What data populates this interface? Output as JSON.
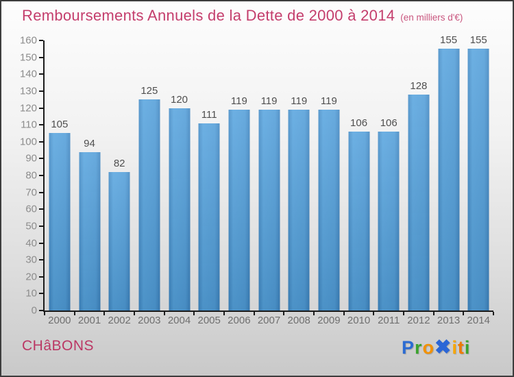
{
  "chart_data": {
    "type": "bar",
    "title": "Remboursements Annuels de la Dette de 2000 à 2014",
    "subtitle": "(en milliers d'€)",
    "categories": [
      "2000",
      "2001",
      "2002",
      "2003",
      "2004",
      "2005",
      "2006",
      "2007",
      "2008",
      "2009",
      "2010",
      "2011",
      "2012",
      "2013",
      "2014"
    ],
    "values": [
      105,
      94,
      82,
      125,
      120,
      111,
      119,
      119,
      119,
      119,
      106,
      106,
      128,
      155,
      155
    ],
    "xlabel": "",
    "ylabel": "",
    "ylim": [
      0,
      160
    ],
    "ytick_step": 10,
    "grid": false,
    "legend": false,
    "bar_color": "#4b99d6",
    "axis_color": "#1a1a1a",
    "value_label_color": "#4f4f4f",
    "tick_label_color": "#8c8c8c"
  },
  "header": {
    "title": "Remboursements Annuels de la Dette de 2000 à 2014",
    "subtitle": "(en milliers d'€)",
    "title_color": "#c43d6c"
  },
  "footer": {
    "commune": "CHâBONS"
  },
  "logo": {
    "name": "Proxiti",
    "letters": [
      {
        "ch": "P",
        "color": "#2b6bd3"
      },
      {
        "ch": "r",
        "color": "#3aa32d"
      },
      {
        "ch": "o",
        "color": "#f29100"
      },
      {
        "ch": "✖",
        "color": "#2b66d6",
        "x": true
      },
      {
        "ch": "i",
        "color": "#f7a600"
      },
      {
        "ch": "t",
        "color": "#ee7a00"
      },
      {
        "ch": "i",
        "color": "#3aa32d"
      }
    ]
  }
}
